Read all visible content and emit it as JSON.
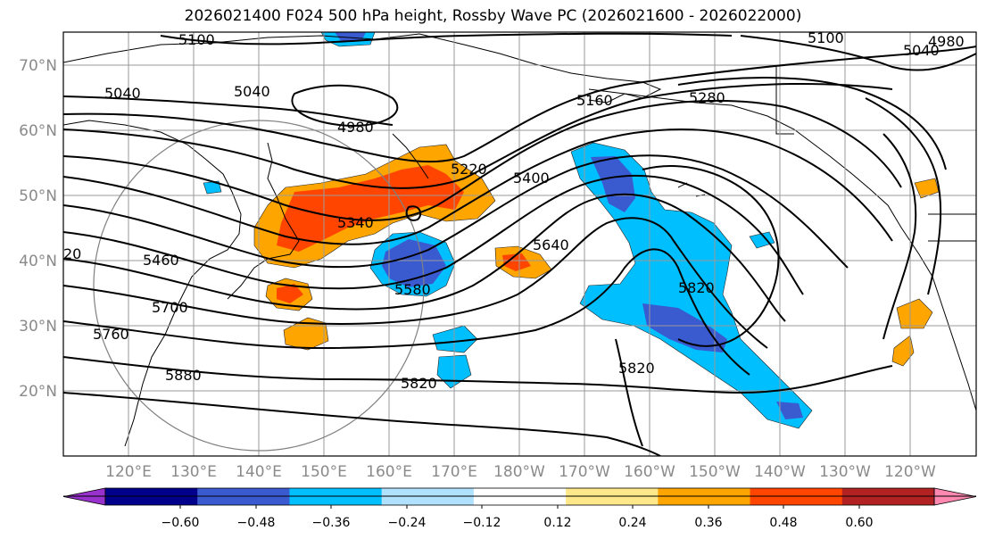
{
  "title": "2026021400 F024 500 hPa height, Rossby Wave PC (2026021600 - 2026022000)",
  "lat_labels": [
    "70°N",
    "60°N",
    "50°N",
    "40°N",
    "30°N",
    "20°N"
  ],
  "lon_labels": [
    "120°E",
    "130°E",
    "140°E",
    "150°E",
    "160°E",
    "170°E",
    "180°W",
    "170°W",
    "160°W",
    "150°W",
    "140°W",
    "130°W",
    "120°W"
  ],
  "contour_labels": [
    "5100",
    "4980",
    "5040",
    "5040",
    "5040",
    "5100",
    "4980",
    "5160",
    "5280",
    "5220",
    "5400",
    "5340",
    "5460",
    "5640",
    "5580",
    "5700",
    "5760",
    "5880",
    "5820",
    "5820",
    "5820",
    "20"
  ],
  "colorbar": {
    "tick_labels": [
      "−0.60",
      "−0.48",
      "−0.36",
      "−0.24",
      "−0.12",
      "0.12",
      "0.24",
      "0.36",
      "0.48",
      "0.60"
    ],
    "colors": [
      "#9932cc",
      "#00008b",
      "#3a5bd0",
      "#00bfff",
      "#b0e2ff",
      "#ffffff",
      "#ffe88a",
      "#ffa500",
      "#ff4500",
      "#b22222",
      "#ff88b0"
    ]
  }
}
